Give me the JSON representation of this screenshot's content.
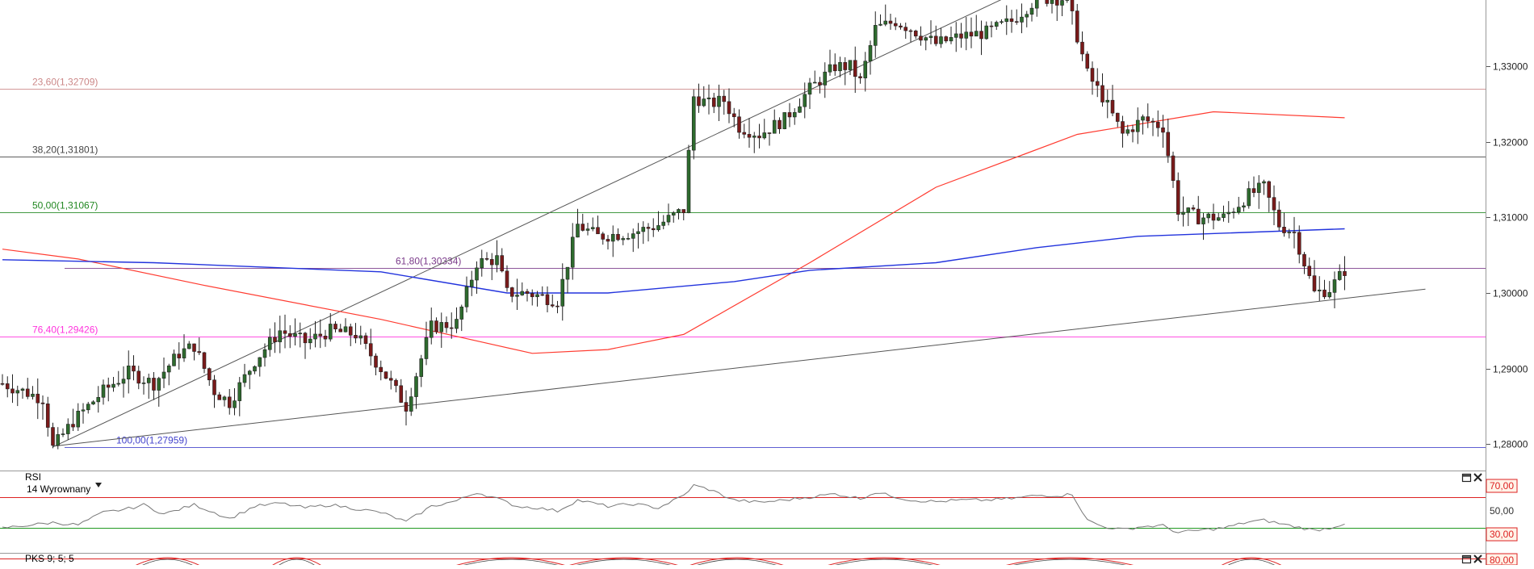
{
  "colors": {
    "candle_up": "#2e6b2e",
    "candle_down": "#7a1a1a",
    "wick": "#222222",
    "ma_red": "#ff3b30",
    "ma_blue": "#2233dd",
    "trendline": "#555555",
    "rsi_line": "#777777",
    "level_high": "#dd2222",
    "level_low": "#229922",
    "panel_border": "#999999",
    "axis_tag_bg": "#fff3e8",
    "axis_tag_text": "#dd2222"
  },
  "chart_data": {
    "type": "candlestick",
    "title": "",
    "xlabel": "",
    "ylabel": "",
    "ylim": [
      1.2768,
      1.3388
    ],
    "y_ticks": [
      {
        "value": 1.28,
        "label": "1,28000"
      },
      {
        "value": 1.29,
        "label": "1,29000"
      },
      {
        "value": 1.3,
        "label": "1,30000"
      },
      {
        "value": 1.31,
        "label": "1,31000"
      },
      {
        "value": 1.32,
        "label": "1,32000"
      },
      {
        "value": 1.33,
        "label": "1,33000"
      }
    ],
    "fibonacci": [
      {
        "label": "23,60(1,32709)",
        "value": 1.32709,
        "color": "#cc8888"
      },
      {
        "label": "38,20(1,31801)",
        "value": 1.31801,
        "color": "#444444"
      },
      {
        "label": "50,00(1,31067)",
        "value": 1.31067,
        "color": "#228822"
      },
      {
        "label": "61,80(1,30334)",
        "value": 1.30334,
        "color": "#7a3a8a"
      },
      {
        "label": "76,40(1,29426)",
        "value": 1.29426,
        "color": "#ff33dd"
      },
      {
        "label": "100,00(1,27959)",
        "value": 1.27959,
        "color": "#4444cc"
      }
    ],
    "waypoints": [
      [
        0,
        1.288
      ],
      [
        8,
        1.286
      ],
      [
        10,
        1.2795
      ],
      [
        14,
        1.283
      ],
      [
        20,
        1.287
      ],
      [
        25,
        1.2895
      ],
      [
        30,
        1.288
      ],
      [
        35,
        1.292
      ],
      [
        38,
        1.293
      ],
      [
        42,
        1.287
      ],
      [
        45,
        1.2855
      ],
      [
        50,
        1.291
      ],
      [
        55,
        1.295
      ],
      [
        60,
        1.2935
      ],
      [
        65,
        1.295
      ],
      [
        70,
        1.2945
      ],
      [
        75,
        1.29
      ],
      [
        80,
        1.285
      ],
      [
        85,
        1.2955
      ],
      [
        90,
        1.296
      ],
      [
        94,
        1.304
      ],
      [
        98,
        1.3045
      ],
      [
        100,
        1.3
      ],
      [
        104,
        1.3
      ],
      [
        110,
        1.299
      ],
      [
        114,
        1.309
      ],
      [
        118,
        1.3075
      ],
      [
        125,
        1.308
      ],
      [
        130,
        1.309
      ],
      [
        135,
        1.311
      ],
      [
        137,
        1.326
      ],
      [
        140,
        1.325
      ],
      [
        143,
        1.3255
      ],
      [
        146,
        1.322
      ],
      [
        150,
        1.321
      ],
      [
        155,
        1.323
      ],
      [
        160,
        1.327
      ],
      [
        165,
        1.33
      ],
      [
        168,
        1.33
      ],
      [
        170,
        1.328
      ],
      [
        173,
        1.335
      ],
      [
        177,
        1.336
      ],
      [
        180,
        1.335
      ],
      [
        185,
        1.333
      ],
      [
        190,
        1.334
      ],
      [
        195,
        1.3345
      ],
      [
        200,
        1.336
      ],
      [
        205,
        1.339
      ],
      [
        211,
        1.339
      ],
      [
        215,
        1.329
      ],
      [
        218,
        1.326
      ],
      [
        222,
        1.321
      ],
      [
        226,
        1.323
      ],
      [
        230,
        1.322
      ],
      [
        233,
        1.311
      ],
      [
        237,
        1.31
      ],
      [
        242,
        1.31
      ],
      [
        247,
        1.313
      ],
      [
        250,
        1.314
      ],
      [
        253,
        1.309
      ],
      [
        256,
        1.308
      ],
      [
        260,
        1.3
      ],
      [
        263,
        1.3005
      ],
      [
        266,
        1.303
      ]
    ],
    "ma_red": [
      [
        1.3058,
        0
      ],
      [
        1.3045,
        15
      ],
      [
        1.301,
        40
      ],
      [
        1.2965,
        75
      ],
      [
        1.2935,
        95
      ],
      [
        1.292,
        105
      ],
      [
        1.2925,
        120
      ],
      [
        1.2945,
        135
      ],
      [
        1.304,
        160
      ],
      [
        1.314,
        185
      ],
      [
        1.321,
        213
      ],
      [
        1.324,
        240
      ],
      [
        1.3232,
        266
      ]
    ],
    "ma_blue": [
      [
        1.3044,
        0
      ],
      [
        1.304,
        30
      ],
      [
        1.3028,
        75
      ],
      [
        1.3,
        100
      ],
      [
        1.3,
        120
      ],
      [
        1.3015,
        145
      ],
      [
        1.303,
        160
      ],
      [
        1.304,
        185
      ],
      [
        1.306,
        205
      ],
      [
        1.3075,
        225
      ],
      [
        1.3085,
        266
      ]
    ],
    "trendlines": [
      {
        "from": [
          10,
          1.2796
        ],
        "to": [
          200,
          1.3395
        ]
      },
      {
        "from": [
          10,
          1.2797
        ],
        "to": [
          282,
          1.3005
        ]
      }
    ],
    "rsi": {
      "title": "RSI",
      "subtitle": "14 Wyrownany",
      "levels": [
        {
          "label": "70,00",
          "value": 70
        },
        {
          "label": "30,00",
          "value": 30
        }
      ],
      "mid_label": "50,00",
      "values": [
        [
          0,
          30
        ],
        [
          10,
          37
        ],
        [
          15,
          34
        ],
        [
          20,
          50
        ],
        [
          25,
          55
        ],
        [
          28,
          60
        ],
        [
          32,
          48
        ],
        [
          38,
          60
        ],
        [
          42,
          50
        ],
        [
          45,
          42
        ],
        [
          50,
          58
        ],
        [
          55,
          62
        ],
        [
          60,
          56
        ],
        [
          65,
          60
        ],
        [
          70,
          55
        ],
        [
          75,
          50
        ],
        [
          80,
          38
        ],
        [
          85,
          58
        ],
        [
          90,
          65
        ],
        [
          94,
          76
        ],
        [
          98,
          68
        ],
        [
          102,
          58
        ],
        [
          106,
          56
        ],
        [
          110,
          52
        ],
        [
          114,
          66
        ],
        [
          120,
          58
        ],
        [
          125,
          61
        ],
        [
          130,
          56
        ],
        [
          135,
          72
        ],
        [
          137,
          85
        ],
        [
          140,
          80
        ],
        [
          145,
          66
        ],
        [
          150,
          63
        ],
        [
          155,
          66
        ],
        [
          160,
          70
        ],
        [
          165,
          74
        ],
        [
          170,
          68
        ],
        [
          173,
          76
        ],
        [
          180,
          66
        ],
        [
          185,
          64
        ],
        [
          190,
          66
        ],
        [
          195,
          66
        ],
        [
          200,
          68
        ],
        [
          205,
          72
        ],
        [
          210,
          72
        ],
        [
          212,
          74
        ],
        [
          215,
          40
        ],
        [
          218,
          32
        ],
        [
          222,
          28
        ],
        [
          226,
          32
        ],
        [
          230,
          33
        ],
        [
          233,
          24
        ],
        [
          237,
          27
        ],
        [
          242,
          30
        ],
        [
          247,
          38
        ],
        [
          250,
          40
        ],
        [
          253,
          36
        ],
        [
          256,
          32
        ],
        [
          260,
          27
        ],
        [
          263,
          30
        ],
        [
          266,
          36
        ]
      ]
    },
    "pks": {
      "title": "PKS 9; 5; 5",
      "level_label": "80,00"
    }
  }
}
